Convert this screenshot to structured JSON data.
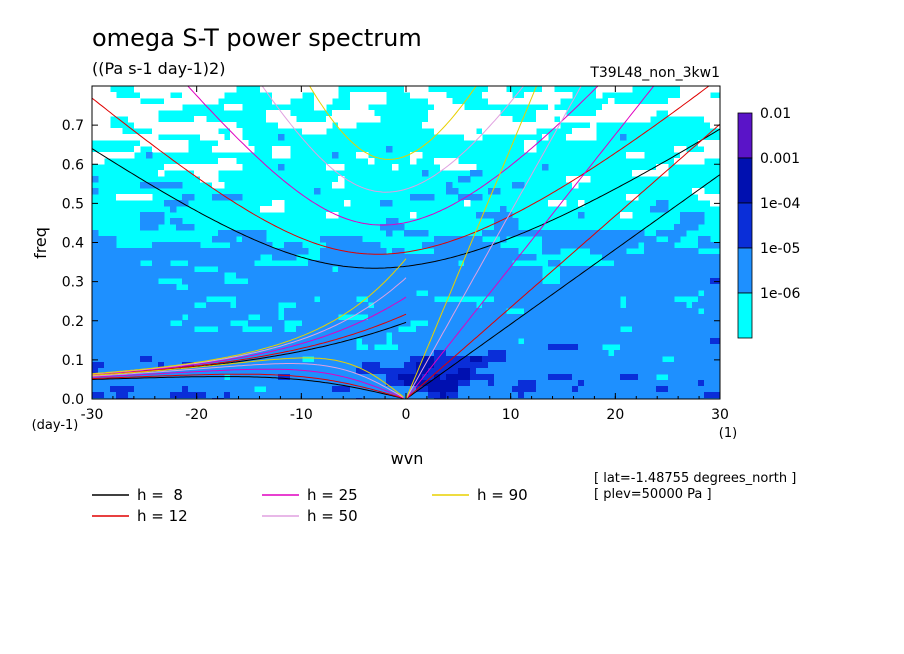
{
  "chart_data": {
    "type": "heatmap",
    "title": "omega S-T power spectrum",
    "subtitle": "((Pa s-1 day-1)2)",
    "run_label": "T39L48_non_3kw1",
    "xlabel": "wvn",
    "ylabel": "freq",
    "x_unit_label": "(1)",
    "y_unit_label": "(day-1)",
    "xlim": [
      -30,
      30
    ],
    "ylim": [
      0,
      0.8
    ],
    "x_ticks": [
      "-30",
      "-20",
      "-10",
      "0",
      "10",
      "20",
      "30"
    ],
    "y_ticks": [
      "0.0",
      "0.1",
      "0.2",
      "0.3",
      "0.4",
      "0.5",
      "0.6",
      "0.7"
    ],
    "colorbar": {
      "levels": [
        "1e-06",
        "1e-05",
        "1e-04",
        "0.001",
        "0.01"
      ],
      "colors": [
        "#00ffff",
        "#1e90ff",
        "#0a2ed8",
        "#0010b0",
        "#5a14c8"
      ]
    },
    "field_colors": {
      "below": "#ffffff",
      "band1": "#00ffff",
      "band2": "#1e90ff",
      "band3": "#0a2ed8",
      "band4": "#0010b0"
    },
    "dispersion_curves": [
      {
        "h": 8,
        "color": "#000000"
      },
      {
        "h": 12,
        "color": "#e00000"
      },
      {
        "h": 25,
        "color": "#e000c0"
      },
      {
        "h": 50,
        "color": "#e0a0e0"
      },
      {
        "h": 90,
        "color": "#e8d000"
      }
    ],
    "legend": [
      {
        "label": "h =  8",
        "color": "#000000"
      },
      {
        "label": "h = 12",
        "color": "#e00000"
      },
      {
        "label": "h = 25",
        "color": "#e000c0"
      },
      {
        "label": "h = 50",
        "color": "#e0a0e0"
      },
      {
        "label": "h = 90",
        "color": "#e8d000"
      }
    ],
    "annotations": [
      "[ lat=-1.48755 degrees_north ]",
      "[ plev=50000 Pa ]"
    ]
  }
}
